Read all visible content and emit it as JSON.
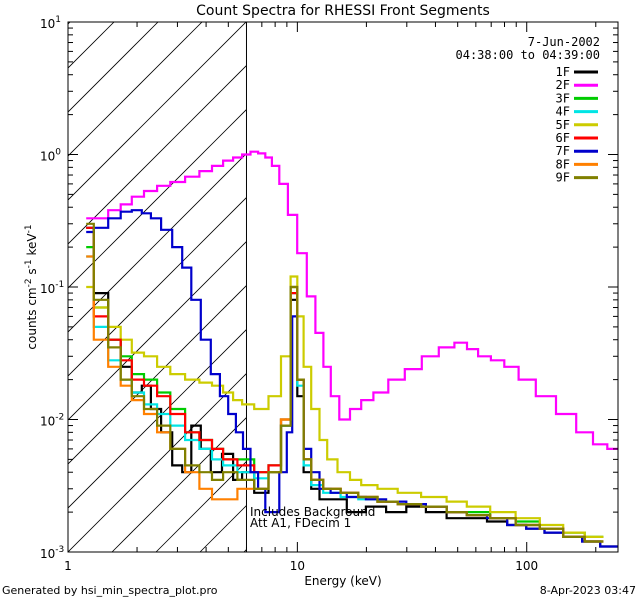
{
  "chart_data": {
    "type": "line",
    "title": "Count Spectra for RHESSI Front Segments",
    "xlabel": "Energy (keV)",
    "ylabel": "counts cm-2 s-1 keV-1",
    "ylabel_parts": {
      "base": "counts cm",
      "e1": "-2",
      "mid": " s",
      "e2": "-1",
      "end": " keV",
      "e3": "-1"
    },
    "xscale": "log",
    "yscale": "log",
    "xlim": [
      1,
      250
    ],
    "ylim": [
      0.001,
      10
    ],
    "x_ticks": [
      {
        "v": 1,
        "label": "1"
      },
      {
        "v": 10,
        "label": "10"
      },
      {
        "v": 100,
        "label": "100"
      }
    ],
    "y_ticks": [
      {
        "v": 0.001,
        "base": "10",
        "exp": "-3"
      },
      {
        "v": 0.01,
        "base": "10",
        "exp": "-2"
      },
      {
        "v": 0.1,
        "base": "10",
        "exp": "-1"
      },
      {
        "v": 1,
        "base": "10",
        "exp": "0"
      },
      {
        "v": 10,
        "base": "10",
        "exp": "1"
      }
    ],
    "date": "7-Jun-2002",
    "time_range": "04:38:00 to 04:39:00",
    "hatched_region": {
      "x_from": 1,
      "x_to": 6
    },
    "annotations": [
      "Includes Background",
      "Att A1, FDecim 1"
    ],
    "series": [
      {
        "name": "1F",
        "color": "#000000",
        "x": [
          1.2,
          1.4,
          1.6,
          1.8,
          2.0,
          2.2,
          2.4,
          2.7,
          3.0,
          3.3,
          3.6,
          4.0,
          4.4,
          5.0,
          5.5,
          6.0,
          7,
          8,
          9,
          9.7,
          10.3,
          11,
          12,
          13,
          15,
          18,
          22,
          27,
          33,
          40,
          50,
          60,
          75,
          90,
          110,
          130,
          160,
          190,
          230
        ],
        "values": [
          0.28,
          0.09,
          0.04,
          0.025,
          0.016,
          0.018,
          0.012,
          0.008,
          0.0045,
          0.004,
          0.009,
          0.006,
          0.004,
          0.0055,
          0.0035,
          0.004,
          0.0028,
          0.004,
          0.009,
          0.08,
          0.015,
          0.004,
          0.003,
          0.0025,
          0.0025,
          0.002,
          0.0022,
          0.002,
          0.0022,
          0.002,
          0.0018,
          0.0018,
          0.0017,
          0.0016,
          0.0015,
          0.0014,
          0.0013,
          0.0012,
          0.0011
        ]
      },
      {
        "name": "2F",
        "color": "#ff00ff",
        "x": [
          1.2,
          1.4,
          1.6,
          1.8,
          2.0,
          2.3,
          2.6,
          3.0,
          3.5,
          4.0,
          4.5,
          5.0,
          5.5,
          6.0,
          6.5,
          7.0,
          7.5,
          8.0,
          8.7,
          9.5,
          10.5,
          11.5,
          12.5,
          13.5,
          14.5,
          16,
          18,
          20,
          23,
          27,
          32,
          38,
          45,
          52,
          58,
          65,
          75,
          85,
          100,
          120,
          150,
          180,
          210,
          240
        ],
        "values": [
          0.33,
          0.33,
          0.38,
          0.42,
          0.48,
          0.53,
          0.58,
          0.62,
          0.68,
          0.75,
          0.82,
          0.9,
          0.95,
          1.0,
          1.05,
          1.02,
          0.95,
          0.82,
          0.6,
          0.35,
          0.18,
          0.085,
          0.045,
          0.025,
          0.015,
          0.01,
          0.012,
          0.014,
          0.016,
          0.02,
          0.024,
          0.03,
          0.035,
          0.038,
          0.034,
          0.03,
          0.028,
          0.025,
          0.02,
          0.015,
          0.011,
          0.008,
          0.0065,
          0.006
        ]
      },
      {
        "name": "3F",
        "color": "#00cc00",
        "x": [
          1.2,
          1.4,
          1.6,
          1.8,
          2.0,
          2.3,
          2.6,
          3.0,
          3.5,
          4.0,
          4.5,
          5.0,
          6,
          7,
          8,
          9,
          9.7,
          10.3,
          11,
          12,
          14,
          17,
          20,
          25,
          30,
          40,
          50,
          60,
          80,
          100,
          130,
          160,
          200
        ],
        "values": [
          0.2,
          0.07,
          0.04,
          0.03,
          0.022,
          0.02,
          0.016,
          0.012,
          0.008,
          0.007,
          0.006,
          0.005,
          0.005,
          0.004,
          0.0045,
          0.01,
          0.1,
          0.02,
          0.005,
          0.0035,
          0.003,
          0.0028,
          0.0026,
          0.0024,
          0.0023,
          0.0022,
          0.002,
          0.002,
          0.0018,
          0.0017,
          0.0015,
          0.0014,
          0.0013
        ]
      },
      {
        "name": "4F",
        "color": "#00e5e5",
        "x": [
          1.2,
          1.4,
          1.6,
          1.8,
          2.0,
          2.3,
          2.6,
          3.0,
          3.5,
          4.0,
          4.5,
          5.0,
          6,
          7,
          8,
          9,
          9.7,
          10.3,
          11,
          12,
          14,
          17,
          20,
          25,
          30,
          40,
          50,
          60,
          80,
          100,
          130,
          160,
          200
        ],
        "values": [
          0.17,
          0.05,
          0.028,
          0.02,
          0.016,
          0.013,
          0.011,
          0.009,
          0.007,
          0.006,
          0.005,
          0.0045,
          0.004,
          0.0036,
          0.004,
          0.009,
          0.09,
          0.018,
          0.0045,
          0.0032,
          0.0028,
          0.0026,
          0.0025,
          0.0024,
          0.0023,
          0.0022,
          0.002,
          0.0019,
          0.0018,
          0.0016,
          0.0015,
          0.0013,
          0.0012
        ]
      },
      {
        "name": "5F",
        "color": "#cccc00",
        "x": [
          1.2,
          1.4,
          1.6,
          1.8,
          2.0,
          2.3,
          2.6,
          3.0,
          3.5,
          4.0,
          4.5,
          5.0,
          5.5,
          6.0,
          7,
          8,
          9,
          9.7,
          10.3,
          11,
          12,
          13,
          14,
          16,
          18,
          20,
          25,
          30,
          40,
          50,
          60,
          80,
          100,
          130,
          160,
          200
        ],
        "values": [
          0.1,
          0.07,
          0.05,
          0.04,
          0.032,
          0.03,
          0.025,
          0.022,
          0.02,
          0.019,
          0.018,
          0.016,
          0.014,
          0.013,
          0.012,
          0.015,
          0.03,
          0.12,
          0.06,
          0.025,
          0.012,
          0.007,
          0.005,
          0.004,
          0.0035,
          0.0032,
          0.003,
          0.0028,
          0.0026,
          0.0024,
          0.0022,
          0.002,
          0.0018,
          0.0016,
          0.0014,
          0.0013
        ]
      },
      {
        "name": "6F",
        "color": "#ff0000",
        "x": [
          1.2,
          1.4,
          1.6,
          1.8,
          2.0,
          2.3,
          2.6,
          3.0,
          3.5,
          4.0,
          4.5,
          5.0,
          6,
          7,
          8,
          9,
          9.7,
          10.3,
          11,
          12,
          14,
          17,
          20,
          25,
          30,
          40,
          50,
          60,
          80,
          100,
          130,
          160,
          200
        ],
        "values": [
          0.28,
          0.06,
          0.04,
          0.028,
          0.02,
          0.018,
          0.015,
          0.011,
          0.008,
          0.007,
          0.006,
          0.005,
          0.0045,
          0.004,
          0.0045,
          0.01,
          0.09,
          0.02,
          0.005,
          0.0035,
          0.003,
          0.0028,
          0.0026,
          0.0024,
          0.0023,
          0.0022,
          0.002,
          0.0019,
          0.0018,
          0.0016,
          0.0015,
          0.0013,
          0.0012
        ]
      },
      {
        "name": "7F",
        "color": "#0000cc",
        "x": [
          1.2,
          1.4,
          1.6,
          1.8,
          2.0,
          2.2,
          2.4,
          2.7,
          3.0,
          3.3,
          3.6,
          4.0,
          4.4,
          4.8,
          5.2,
          5.6,
          6.0,
          6.5,
          7.0,
          7.5,
          8.0,
          8.7,
          9.3,
          9.7,
          10.3,
          11,
          12,
          13,
          15,
          18,
          22,
          27,
          33,
          40,
          50,
          60,
          75,
          90,
          110,
          130,
          160,
          190,
          230
        ],
        "values": [
          0.26,
          0.28,
          0.33,
          0.37,
          0.38,
          0.36,
          0.33,
          0.27,
          0.2,
          0.14,
          0.08,
          0.04,
          0.022,
          0.015,
          0.011,
          0.008,
          0.006,
          0.004,
          0.003,
          0.002,
          0.002,
          0.004,
          0.008,
          0.06,
          0.02,
          0.006,
          0.004,
          0.003,
          0.0028,
          0.0026,
          0.0025,
          0.0024,
          0.0023,
          0.0022,
          0.002,
          0.0019,
          0.0018,
          0.0016,
          0.0015,
          0.0014,
          0.0013,
          0.0012,
          0.0011
        ]
      },
      {
        "name": "8F",
        "color": "#ff8000",
        "x": [
          1.2,
          1.4,
          1.6,
          1.8,
          2.0,
          2.3,
          2.6,
          3.0,
          3.5,
          4.0,
          4.5,
          5.0,
          6,
          7,
          8,
          9,
          9.7,
          10.3,
          11,
          12,
          14,
          17,
          20,
          25,
          30,
          40,
          50,
          60,
          80,
          100,
          130,
          160,
          200
        ],
        "values": [
          0.17,
          0.04,
          0.025,
          0.018,
          0.014,
          0.011,
          0.008,
          0.006,
          0.004,
          0.003,
          0.0025,
          0.0025,
          0.003,
          0.003,
          0.004,
          0.01,
          0.1,
          0.02,
          0.005,
          0.0035,
          0.003,
          0.0028,
          0.0026,
          0.0024,
          0.0023,
          0.0022,
          0.002,
          0.0019,
          0.0018,
          0.0016,
          0.0015,
          0.0013,
          0.0012
        ]
      },
      {
        "name": "9F",
        "color": "#808000",
        "x": [
          1.2,
          1.4,
          1.6,
          1.8,
          2.0,
          2.3,
          2.6,
          3.0,
          3.5,
          4.0,
          4.5,
          5.0,
          6,
          7,
          8,
          9,
          9.7,
          10.3,
          11,
          12,
          14,
          17,
          20,
          25,
          30,
          40,
          50,
          60,
          80,
          100,
          130,
          160,
          200
        ],
        "values": [
          0.3,
          0.08,
          0.035,
          0.02,
          0.015,
          0.012,
          0.009,
          0.006,
          0.0045,
          0.004,
          0.0035,
          0.004,
          0.0035,
          0.003,
          0.004,
          0.009,
          0.1,
          0.02,
          0.005,
          0.0035,
          0.003,
          0.0028,
          0.0026,
          0.0024,
          0.0023,
          0.0022,
          0.002,
          0.0019,
          0.0018,
          0.0016,
          0.0015,
          0.0013,
          0.0012
        ]
      }
    ]
  },
  "footer": {
    "generated_by": "Generated by hsi_min_spectra_plot.pro",
    "timestamp": "8-Apr-2023 03:47"
  }
}
